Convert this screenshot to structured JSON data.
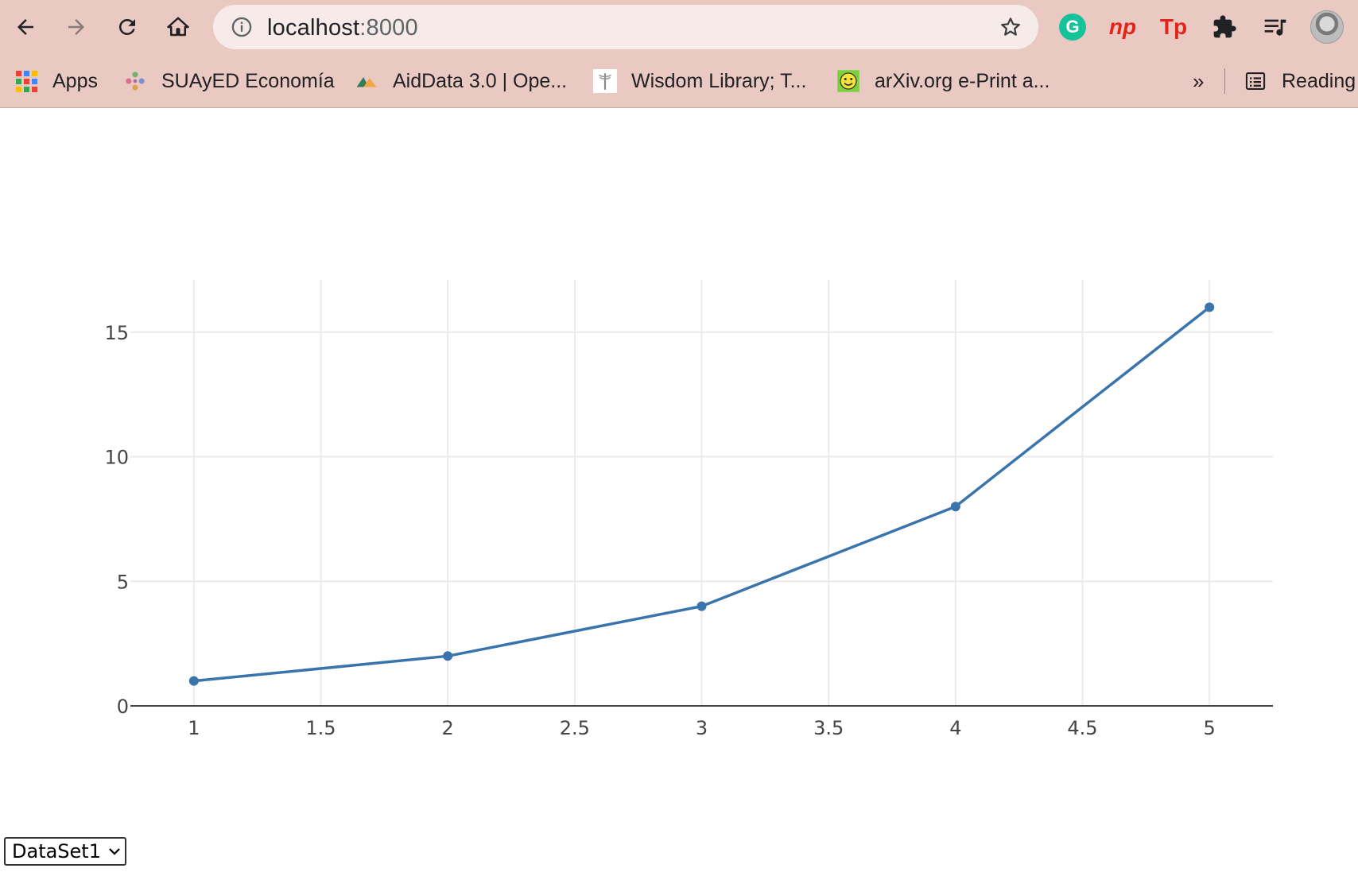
{
  "browser": {
    "url_host": "localhost",
    "url_port": ":8000",
    "icons": {
      "back": "back-arrow-icon",
      "forward": "forward-arrow-icon",
      "reload": "reload-icon",
      "home": "home-icon",
      "site_info": "info-icon",
      "bookmark": "star-icon"
    },
    "extensions": [
      {
        "name": "grammarly-icon",
        "text": "G"
      },
      {
        "name": "np-extension-icon",
        "text": "np"
      },
      {
        "name": "tp-extension-icon",
        "text": "Tp"
      },
      {
        "name": "extensions-puzzle-icon",
        "text": ""
      },
      {
        "name": "media-control-icon",
        "text": ""
      }
    ]
  },
  "bookmarks": {
    "items": [
      {
        "label": "Apps"
      },
      {
        "label": "SUAyED Economía"
      },
      {
        "label": "AidData 3.0 | Ope..."
      },
      {
        "label": "Wisdom Library; T..."
      },
      {
        "label": "arXiv.org e-Print a..."
      }
    ],
    "more": "»",
    "reading_list": "Reading"
  },
  "chart_data": {
    "type": "line",
    "x": [
      1,
      2,
      3,
      4,
      5
    ],
    "y": [
      1,
      2,
      4,
      8,
      16
    ],
    "series": [
      {
        "values": [
          1,
          2,
          4,
          8,
          16
        ],
        "color": "#3a74ac"
      }
    ],
    "xlim": [
      0.75,
      5.25
    ],
    "ylim": [
      0,
      17.1
    ],
    "xticks": [
      1,
      1.5,
      2,
      2.5,
      3,
      3.5,
      4,
      4.5,
      5
    ],
    "xtick_labels": [
      "1",
      "1.5",
      "2",
      "2.5",
      "3",
      "3.5",
      "4",
      "4.5",
      "5"
    ],
    "yticks": [
      0,
      5,
      10,
      15
    ],
    "ytick_labels": [
      "0",
      "5",
      "10",
      "15"
    ],
    "title": "",
    "xlabel": "",
    "ylabel": "",
    "grid": true,
    "grid_color": "#ebebeb"
  },
  "dataset_selector": {
    "selected": "DataSet1"
  }
}
